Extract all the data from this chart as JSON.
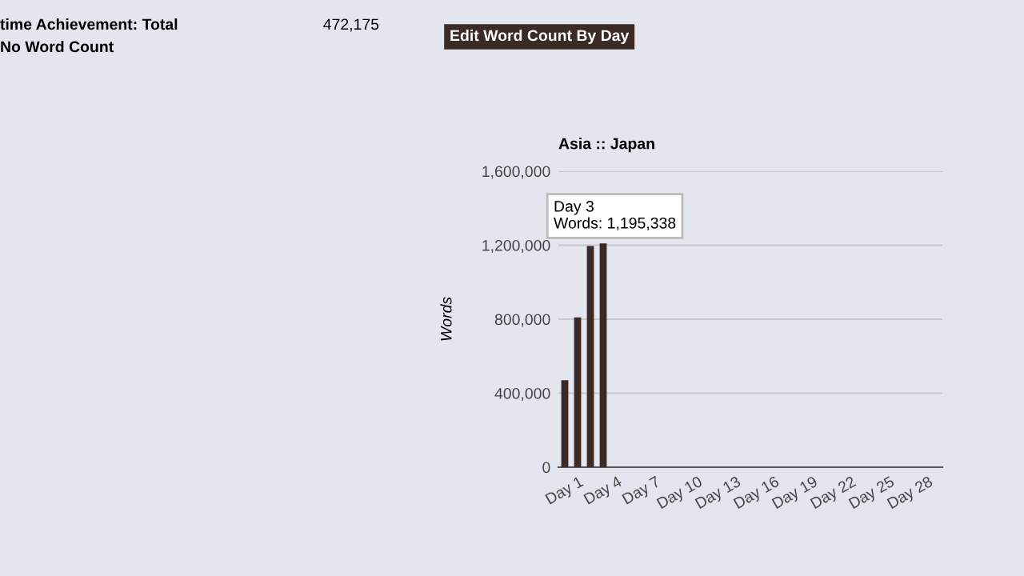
{
  "chart_data": {
    "type": "bar",
    "title": "Asia :: Japan",
    "ylabel": "Words",
    "categories": [
      "Day 1",
      null,
      null,
      "Day 4",
      null,
      null,
      "Day 7",
      null,
      null,
      "Day 10",
      null,
      null,
      "Day 13",
      null,
      null,
      "Day 16",
      null,
      null,
      "Day 19",
      null,
      null,
      "Day 22",
      null,
      null,
      "Day 25",
      null,
      null,
      "Day 28",
      null,
      null
    ],
    "values": [
      470000,
      810000,
      1195338,
      1210000,
      null,
      null,
      null,
      null,
      null,
      null,
      null,
      null,
      null,
      null,
      null,
      null,
      null,
      null,
      null,
      null,
      null,
      null,
      null,
      null,
      null,
      null,
      null,
      null,
      null,
      null
    ],
    "color": "#3b2b24",
    "ylim": [
      0,
      1600000
    ],
    "yticks": [
      {
        "value": 0,
        "label": "0"
      },
      {
        "value": 400000,
        "label": "400,000"
      },
      {
        "value": 800000,
        "label": "800,000"
      },
      {
        "value": 1200000,
        "label": "1,200,000"
      },
      {
        "value": 1600000,
        "label": "1,600,000"
      }
    ],
    "grid": "y",
    "legend": false,
    "annotations": [
      "Day 3\nWords: 1,195,338",
      "time Achievement: Total",
      "No Word Count",
      "472,175",
      "Edit Word Count By Day"
    ]
  }
}
